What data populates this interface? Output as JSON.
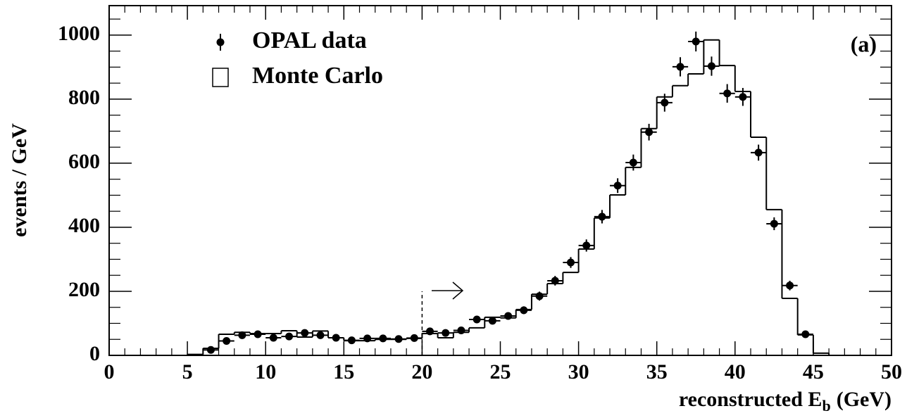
{
  "chart_data": {
    "type": "histogram",
    "annotation": "(a)",
    "y_label": "events / GeV",
    "x_label": {
      "text": "reconstructed E",
      "subscript": "b",
      "suffix": "(GeV)"
    },
    "xlim": [
      0,
      50
    ],
    "xticks": [
      0,
      5,
      10,
      15,
      20,
      25,
      30,
      35,
      40,
      45,
      50
    ],
    "ylim": [
      0,
      1092
    ],
    "yticks": [
      0,
      200,
      400,
      600,
      800,
      1000
    ],
    "cut_line": {
      "x": 20,
      "height": 200
    },
    "series": [
      {
        "name": "OPAL data",
        "type": "errorbar",
        "color": "#000000",
        "x": [
          6.5,
          7.5,
          8.5,
          9.5,
          10.5,
          11.5,
          12.5,
          13.5,
          14.5,
          15.5,
          16.5,
          17.5,
          18.5,
          19.5,
          20.5,
          21.5,
          22.5,
          23.5,
          24.5,
          25.5,
          26.5,
          27.5,
          28.5,
          29.5,
          30.5,
          31.5,
          32.5,
          33.5,
          34.5,
          35.5,
          36.5,
          37.5,
          38.5,
          39.5,
          40.5,
          41.5,
          42.5,
          43.5,
          44.5
        ],
        "values": [
          17,
          45,
          63,
          66,
          55,
          59,
          70,
          63,
          55,
          47,
          53,
          53,
          51,
          54,
          75,
          70,
          78,
          112,
          108,
          123,
          141,
          185,
          233,
          290,
          343,
          433,
          530,
          602,
          697,
          789,
          901,
          980,
          903,
          818,
          807,
          633,
          411,
          218,
          66
        ],
        "errors": [
          4,
          7,
          8,
          8,
          7,
          8,
          8,
          8,
          7,
          7,
          7,
          7,
          7,
          7,
          9,
          8,
          9,
          11,
          10,
          11,
          12,
          14,
          15,
          17,
          19,
          21,
          23,
          25,
          26,
          28,
          30,
          31,
          30,
          29,
          28,
          25,
          20,
          15,
          8
        ]
      },
      {
        "name": "Monte Carlo",
        "type": "histogram",
        "color": "#000000",
        "bins": [
          5,
          6,
          7,
          8,
          9,
          10,
          11,
          12,
          13,
          14,
          15,
          16,
          17,
          18,
          19,
          20,
          21,
          22,
          23,
          24,
          25,
          26,
          27,
          28,
          29,
          30,
          31,
          32,
          33,
          34,
          35,
          36,
          37,
          38,
          39,
          40,
          41,
          42,
          43,
          44,
          45,
          46
        ],
        "values": [
          3,
          22,
          66,
          72,
          68,
          68,
          77,
          57,
          76,
          55,
          46,
          46,
          50,
          50,
          53,
          68,
          55,
          72,
          86,
          119,
          117,
          143,
          191,
          224,
          259,
          332,
          429,
          501,
          587,
          708,
          807,
          842,
          879,
          985,
          905,
          824,
          681,
          455,
          178,
          64,
          7
        ]
      }
    ]
  }
}
